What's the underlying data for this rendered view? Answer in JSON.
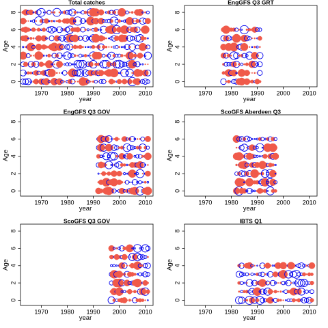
{
  "colors": {
    "positive": "#f05a4a",
    "negative": "#0000ee",
    "frame": "#000000",
    "background": "#ffffff"
  },
  "chart_data": [
    {
      "type": "scatter",
      "title": "Total catches",
      "xlabel": "year",
      "ylabel": "Age",
      "xlim": [
        1962,
        2013
      ],
      "ylim": [
        -0.6,
        8.8
      ],
      "xticks": [
        1970,
        1980,
        1990,
        2000,
        2010
      ],
      "yticks": [
        0,
        2,
        4,
        6,
        8
      ],
      "years": [
        1963,
        2011
      ],
      "ages": [
        0,
        8
      ]
    },
    {
      "type": "scatter",
      "title": "EngGFS Q3 GRT",
      "xlabel": "year",
      "ylabel": "Age",
      "xlim": [
        1962,
        2013
      ],
      "ylim": [
        -0.6,
        8.8
      ],
      "xticks": [
        1970,
        1980,
        1990,
        2000,
        2010
      ],
      "yticks": [
        0,
        2,
        4,
        6,
        8
      ],
      "years": [
        1977,
        1991
      ],
      "ages": [
        0,
        6
      ]
    },
    {
      "type": "scatter",
      "title": "EngGFS Q3 GOV",
      "xlabel": "year",
      "ylabel": "Age",
      "xlim": [
        1962,
        2013
      ],
      "ylim": [
        -0.6,
        8.8
      ],
      "xticks": [
        1970,
        1980,
        1990,
        2000,
        2010
      ],
      "yticks": [
        0,
        2,
        4,
        6,
        8
      ],
      "years": [
        1992,
        2011
      ],
      "ages": [
        0,
        6
      ]
    },
    {
      "type": "scatter",
      "title": "ScoGFS Aberdeen Q3",
      "xlabel": "year",
      "ylabel": "Age",
      "xlim": [
        1962,
        2013
      ],
      "ylim": [
        -0.6,
        8.8
      ],
      "xticks": [
        1970,
        1980,
        1990,
        2000,
        2010
      ],
      "yticks": [
        0,
        2,
        4,
        6,
        8
      ],
      "years": [
        1982,
        1997
      ],
      "ages": [
        0,
        6
      ]
    },
    {
      "type": "scatter",
      "title": "ScoGFS Q3 GOV",
      "xlabel": "year",
      "ylabel": "Age",
      "xlim": [
        1962,
        2013
      ],
      "ylim": [
        -0.6,
        8.8
      ],
      "xticks": [
        1970,
        1980,
        1990,
        2000,
        2010
      ],
      "yticks": [
        0,
        2,
        4,
        6,
        8
      ],
      "years": [
        1997,
        2011
      ],
      "ages": [
        0,
        6
      ]
    },
    {
      "type": "scatter",
      "title": "IBTS Q1",
      "xlabel": "year",
      "ylabel": "Age",
      "xlim": [
        1962,
        2013
      ],
      "ylim": [
        -0.6,
        8.8
      ],
      "xticks": [
        1970,
        1980,
        1990,
        2000,
        2010
      ],
      "yticks": [
        0,
        2,
        4,
        6,
        8
      ],
      "years": [
        1983,
        2011
      ],
      "ages": [
        0,
        4
      ]
    }
  ]
}
